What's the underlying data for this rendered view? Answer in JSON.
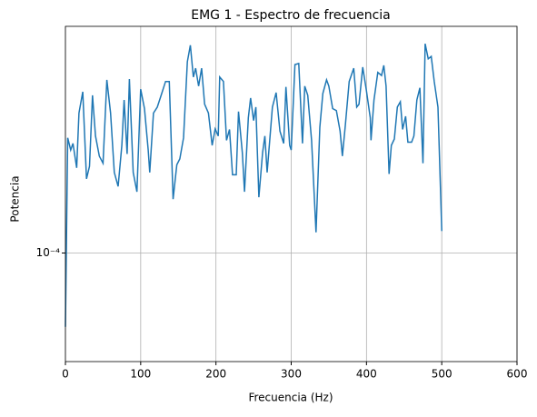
{
  "chart_data": {
    "type": "line",
    "title": "EMG 1 - Espectro de frecuencia",
    "xlabel": "Frecuencia (Hz)",
    "ylabel": "Potencia",
    "xlim": [
      0,
      600
    ],
    "xticks": [
      0,
      100,
      200,
      300,
      400,
      500,
      600
    ],
    "ylim": [
      4.6e-05,
      0.000506
    ],
    "yticks": [
      {
        "value": 0.0001,
        "label": "10⁻⁴"
      }
    ],
    "log_y": true,
    "grid": true,
    "series": [
      {
        "color": "#1f77b4",
        "x": [
          0,
          3,
          7,
          10,
          15,
          18,
          23,
          28,
          32,
          36,
          40,
          45,
          50,
          55,
          60,
          65,
          70,
          75,
          78,
          82,
          85,
          90,
          95,
          100,
          105,
          110,
          112,
          117,
          122,
          128,
          133,
          138,
          143,
          148,
          152,
          157,
          162,
          166,
          170,
          173,
          177,
          181,
          185,
          190,
          195,
          199,
          203,
          205,
          210,
          214,
          218,
          222,
          227,
          230,
          235,
          238,
          243,
          246,
          250,
          253,
          257,
          262,
          265,
          268,
          275,
          280,
          285,
          290,
          293,
          298,
          300,
          305,
          310,
          315,
          318,
          322,
          327,
          333,
          338,
          342,
          347,
          350,
          355,
          360,
          365,
          368,
          372,
          377,
          383,
          387,
          390,
          395,
          400,
          405,
          406,
          410,
          415,
          420,
          423,
          426,
          430,
          433,
          437,
          441,
          445,
          448,
          452,
          455,
          460,
          463,
          467,
          471,
          475,
          478,
          482,
          486,
          490,
          495,
          500
        ],
        "values": [
          5.9e-05,
          0.000228,
          0.000209,
          0.000219,
          0.000184,
          0.000272,
          0.000317,
          0.00017,
          0.000186,
          0.000309,
          0.000231,
          0.0002,
          0.00019,
          0.000345,
          0.000272,
          0.000178,
          0.000161,
          0.000216,
          0.000299,
          0.000203,
          0.000347,
          0.000178,
          0.000155,
          0.000323,
          0.000281,
          0.000209,
          0.000178,
          0.000272,
          0.000284,
          0.000313,
          0.000341,
          0.000341,
          0.000147,
          0.000188,
          0.000196,
          0.000228,
          0.000393,
          0.000442,
          0.000352,
          0.000375,
          0.00033,
          0.000375,
          0.00029,
          0.000272,
          0.000216,
          0.000243,
          0.000231,
          0.000352,
          0.000341,
          0.000224,
          0.000242,
          0.000175,
          0.000175,
          0.000275,
          0.000205,
          0.000155,
          0.000263,
          0.000303,
          0.000258,
          0.000284,
          0.000149,
          0.000205,
          0.000231,
          0.000178,
          0.000284,
          0.000315,
          0.000239,
          0.000219,
          0.000328,
          0.000216,
          0.000209,
          0.000385,
          0.000388,
          0.000219,
          0.00033,
          0.000309,
          0.000224,
          0.000116,
          0.000246,
          0.000313,
          0.000345,
          0.00033,
          0.000281,
          0.000277,
          0.000239,
          0.0002,
          0.00025,
          0.000341,
          0.000375,
          0.000284,
          0.00029,
          0.000378,
          0.000319,
          0.000263,
          0.000224,
          0.000299,
          0.000364,
          0.000356,
          0.000383,
          0.00033,
          0.000176,
          0.000216,
          0.000226,
          0.000284,
          0.000295,
          0.000242,
          0.000266,
          0.000221,
          0.000221,
          0.000231,
          0.000299,
          0.000326,
          0.00019,
          0.000447,
          0.000401,
          0.000408,
          0.000341,
          0.000284,
          0.000117
        ]
      }
    ]
  }
}
